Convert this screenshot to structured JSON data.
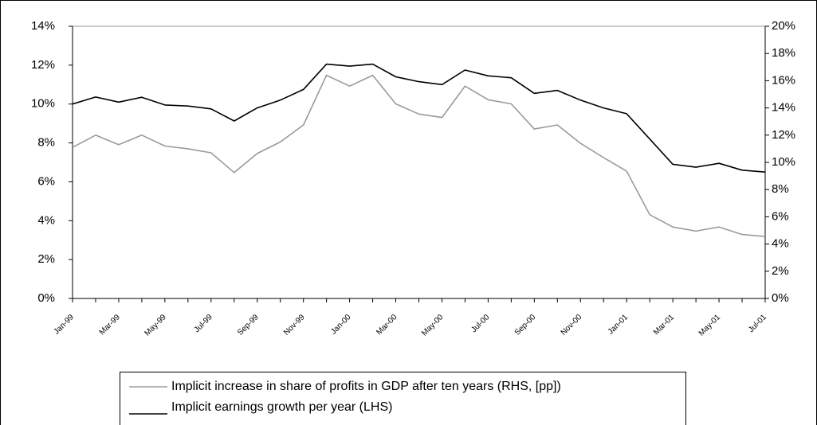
{
  "chart_data": {
    "type": "line",
    "categories": [
      "Jan-99",
      null,
      "Mar-99",
      null,
      "May-99",
      null,
      "Jul-99",
      null,
      "Sep-99",
      null,
      "Nov-99",
      null,
      "Jan-00",
      null,
      "Mar-00",
      null,
      "May-00",
      null,
      "Jul-00",
      null,
      "Sep-00",
      null,
      "Nov-00",
      null,
      "Jan-01",
      null,
      "Mar-01",
      null,
      "May-01",
      null,
      "Jul-01"
    ],
    "series": [
      {
        "name": "Implicit increase in share of profits in GDP after ten years (RHS, [pp])",
        "color": "#9a9a9a",
        "axis": "y2",
        "values": [
          11.1,
          12.0,
          11.3,
          12.0,
          11.2,
          11.0,
          10.7,
          9.25,
          10.65,
          11.5,
          12.75,
          16.4,
          15.6,
          16.4,
          14.3,
          13.55,
          13.3,
          15.6,
          14.6,
          14.3,
          12.45,
          12.75,
          11.4,
          10.35,
          9.35,
          6.15,
          5.25,
          4.95,
          5.25,
          4.7,
          4.55
        ]
      },
      {
        "name": "Implicit earnings growth per year (LHS)",
        "color": "#000000",
        "values": [
          10.0,
          10.36,
          10.1,
          10.35,
          9.95,
          9.9,
          9.75,
          9.13,
          9.8,
          10.2,
          10.75,
          12.05,
          11.95,
          12.05,
          11.4,
          11.15,
          11.0,
          11.75,
          11.45,
          11.35,
          10.55,
          10.7,
          10.2,
          9.8,
          9.5,
          8.2,
          6.9,
          6.75,
          6.95,
          6.6,
          6.5
        ]
      }
    ],
    "ylim": [
      0,
      14
    ],
    "yticks": [
      {
        "value": 0,
        "label": "0%"
      },
      {
        "value": 2,
        "label": "2%"
      },
      {
        "value": 4,
        "label": "4%"
      },
      {
        "value": 6,
        "label": "6%"
      },
      {
        "value": 8,
        "label": "8%"
      },
      {
        "value": 10,
        "label": "10%"
      },
      {
        "value": 12,
        "label": "12%"
      },
      {
        "value": 14,
        "label": "14%"
      }
    ],
    "y2lim": [
      0,
      20
    ],
    "y2ticks": [
      {
        "value": 0,
        "label": "0%"
      },
      {
        "value": 2,
        "label": "2%"
      },
      {
        "value": 4,
        "label": "4%"
      },
      {
        "value": 6,
        "label": "6%"
      },
      {
        "value": 8,
        "label": "8%"
      },
      {
        "value": 10,
        "label": "10%"
      },
      {
        "value": 12,
        "label": "12%"
      },
      {
        "value": 14,
        "label": "14%"
      },
      {
        "value": 16,
        "label": "16%"
      },
      {
        "value": 18,
        "label": "18%"
      },
      {
        "value": 20,
        "label": "20%"
      }
    ]
  }
}
